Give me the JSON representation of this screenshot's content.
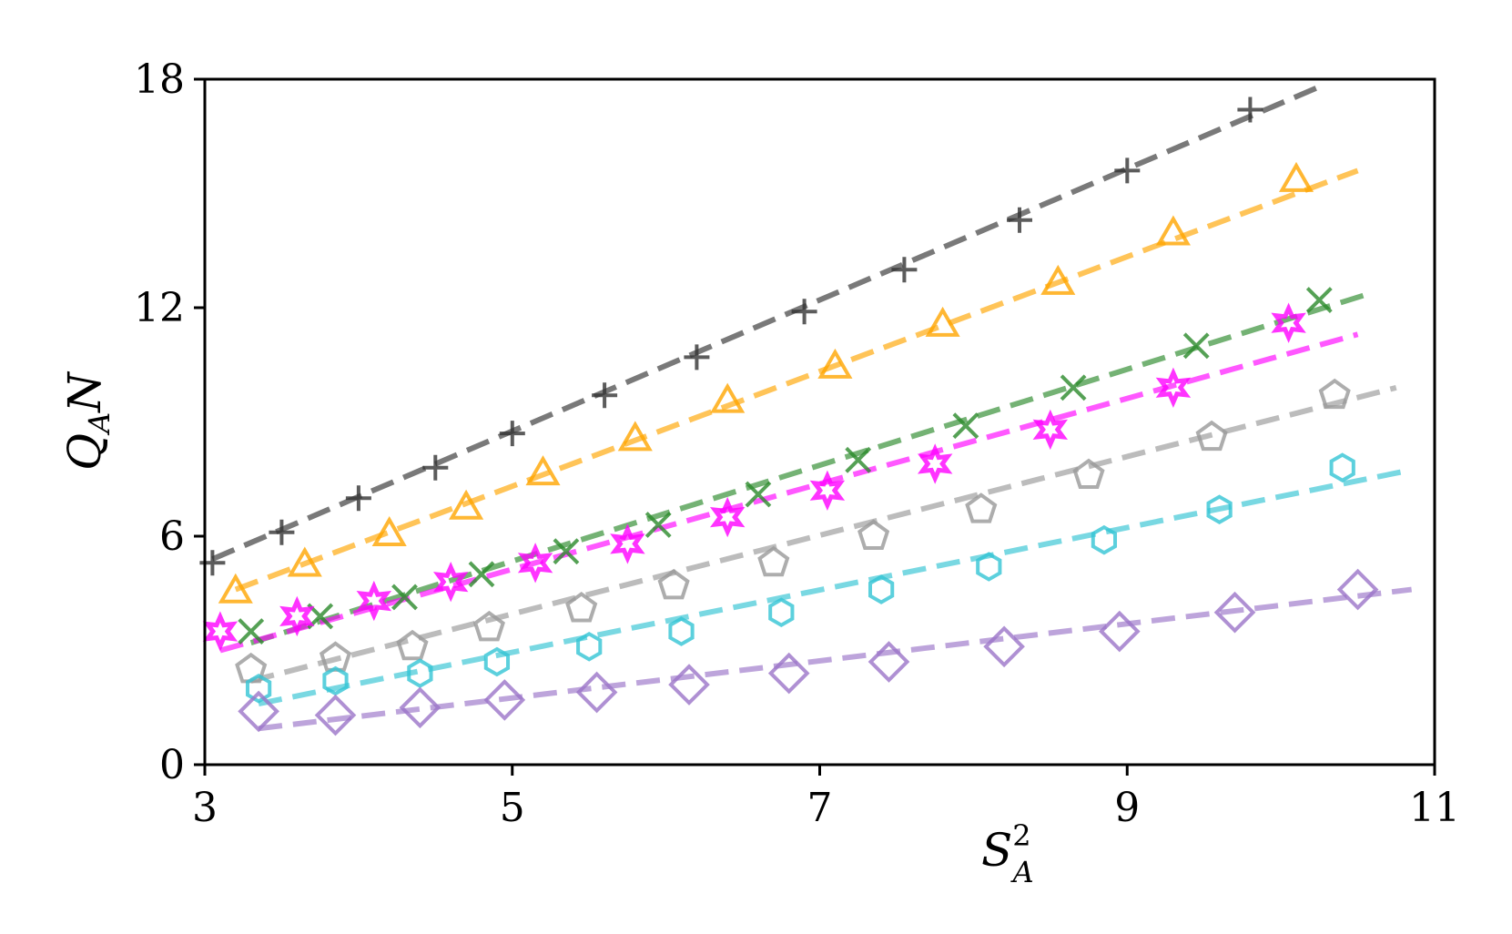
{
  "chart_data": {
    "type": "scatter",
    "title": "",
    "xlabel": "S",
    "xlabel_sup": "2",
    "xlabel_sub": "A",
    "ylabel": "Q",
    "ylabel_sub": "A",
    "ylabel_tail": "N",
    "xlim": [
      3,
      11
    ],
    "ylim": [
      0,
      18
    ],
    "xticks": [
      "3",
      "5",
      "7",
      "9",
      "11"
    ],
    "yticks": [
      "0",
      "6",
      "12",
      "18"
    ],
    "grid": false,
    "legend": "none",
    "series": [
      {
        "marker": "plus",
        "color": "#333333",
        "x": [
          3.05,
          3.5,
          4.0,
          4.5,
          5.0,
          5.6,
          6.2,
          6.9,
          7.55,
          8.3,
          9.0,
          9.8
        ],
        "y": [
          5.3,
          6.1,
          7.0,
          7.8,
          8.7,
          9.7,
          10.7,
          11.9,
          13.0,
          14.3,
          15.6,
          17.2
        ],
        "fit_x": [
          3.05,
          10.25
        ],
        "fit_y": [
          5.4,
          17.8
        ]
      },
      {
        "marker": "triangle",
        "color": "#ffa500",
        "x": [
          3.2,
          3.65,
          4.2,
          4.7,
          5.2,
          5.8,
          6.4,
          7.1,
          7.8,
          8.55,
          9.3,
          10.1
        ],
        "y": [
          4.5,
          5.2,
          6.0,
          6.7,
          7.6,
          8.5,
          9.5,
          10.4,
          11.5,
          12.6,
          13.9,
          15.3
        ],
        "fit_x": [
          3.2,
          10.5
        ],
        "fit_y": [
          4.6,
          15.6
        ]
      },
      {
        "marker": "x",
        "color": "#2a8a2a",
        "x": [
          3.3,
          3.75,
          4.3,
          4.8,
          5.35,
          5.95,
          6.6,
          7.25,
          7.95,
          8.65,
          9.45,
          10.25
        ],
        "y": [
          3.5,
          3.9,
          4.4,
          5.0,
          5.6,
          6.3,
          7.1,
          8.0,
          8.9,
          9.9,
          11.0,
          12.2
        ],
        "fit_x": [
          3.3,
          10.6
        ],
        "fit_y": [
          3.2,
          12.4
        ]
      },
      {
        "marker": "star",
        "color": "#ff00ff",
        "x": [
          3.1,
          3.6,
          4.1,
          4.6,
          5.15,
          5.75,
          6.4,
          7.05,
          7.75,
          8.5,
          9.3,
          10.05
        ],
        "y": [
          3.5,
          3.9,
          4.3,
          4.8,
          5.3,
          5.8,
          6.5,
          7.2,
          7.9,
          8.8,
          9.9,
          11.6
        ],
        "fit_x": [
          3.1,
          10.5
        ],
        "fit_y": [
          3.0,
          11.3
        ]
      },
      {
        "marker": "pentagon",
        "color": "#999999",
        "x": [
          3.3,
          3.85,
          4.35,
          4.85,
          5.45,
          6.05,
          6.7,
          7.35,
          8.05,
          8.75,
          9.55,
          10.35
        ],
        "y": [
          2.5,
          2.8,
          3.1,
          3.6,
          4.1,
          4.7,
          5.3,
          6.0,
          6.7,
          7.6,
          8.6,
          9.7
        ],
        "fit_x": [
          3.3,
          10.75
        ],
        "fit_y": [
          2.2,
          9.9
        ]
      },
      {
        "marker": "hexagon",
        "color": "#33c4d4",
        "x": [
          3.35,
          3.85,
          4.4,
          4.9,
          5.5,
          6.1,
          6.75,
          7.4,
          8.1,
          8.85,
          9.6,
          10.4
        ],
        "y": [
          2.0,
          2.2,
          2.4,
          2.7,
          3.1,
          3.5,
          4.0,
          4.6,
          5.2,
          5.9,
          6.7,
          7.8
        ],
        "fit_x": [
          3.35,
          10.8
        ],
        "fit_y": [
          1.6,
          7.7
        ]
      },
      {
        "marker": "diamond",
        "color": "#9b74c8",
        "x": [
          3.35,
          3.85,
          4.4,
          4.95,
          5.55,
          6.15,
          6.8,
          7.45,
          8.2,
          8.95,
          9.7,
          10.5
        ],
        "y": [
          1.4,
          1.3,
          1.5,
          1.7,
          1.9,
          2.1,
          2.4,
          2.7,
          3.1,
          3.5,
          4.0,
          4.6
        ],
        "fit_x": [
          3.35,
          10.85
        ],
        "fit_y": [
          0.95,
          4.6
        ]
      }
    ]
  }
}
